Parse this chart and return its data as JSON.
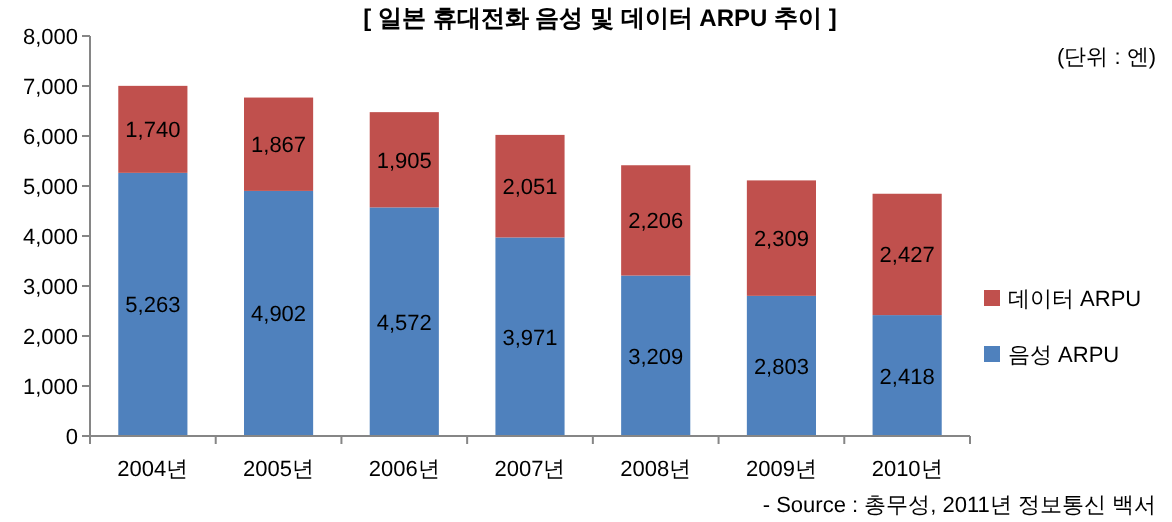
{
  "chart_data": {
    "type": "bar",
    "title": "[ 일본 휴대전화 음성 및 데이터 ARPU 추이 ]",
    "annotations": [
      "(단위 : 엔)",
      "- Source : 총무성, 2011년 정보통신 백서"
    ],
    "categories": [
      "2004년",
      "2005년",
      "2006년",
      "2007년",
      "2008년",
      "2009년",
      "2010년"
    ],
    "stacked": true,
    "legend": "right",
    "grid": false,
    "ylim": [
      0,
      8000
    ],
    "yticks": [
      0,
      {
        "value": 1000,
        "label": "1,000"
      },
      {
        "value": 2000,
        "label": "2,000"
      },
      {
        "value": 3000,
        "label": "3,000"
      },
      {
        "value": 4000,
        "label": "4,000"
      },
      {
        "value": 5000,
        "label": "5,000"
      },
      {
        "value": 6000,
        "label": "6,000"
      },
      {
        "value": 7000,
        "label": "7,000"
      },
      {
        "value": 8000,
        "label": "8,000"
      }
    ],
    "series": [
      {
        "name": "음성 ARPU",
        "color": "#4f81bd",
        "values": [
          5263,
          4902,
          4572,
          3971,
          3209,
          2803,
          2418
        ],
        "value_labels": [
          "5,263",
          "4,902",
          "4,572",
          "3,971",
          "3,209",
          "2,803",
          "2,418"
        ]
      },
      {
        "name": "데이터 ARPU",
        "color": "#c0504d",
        "values": [
          1740,
          1867,
          1905,
          2051,
          2206,
          2309,
          2427
        ],
        "value_labels": [
          "1,740",
          "1,867",
          "1,905",
          "2,051",
          "2,206",
          "2,309",
          "2,427"
        ]
      }
    ]
  }
}
